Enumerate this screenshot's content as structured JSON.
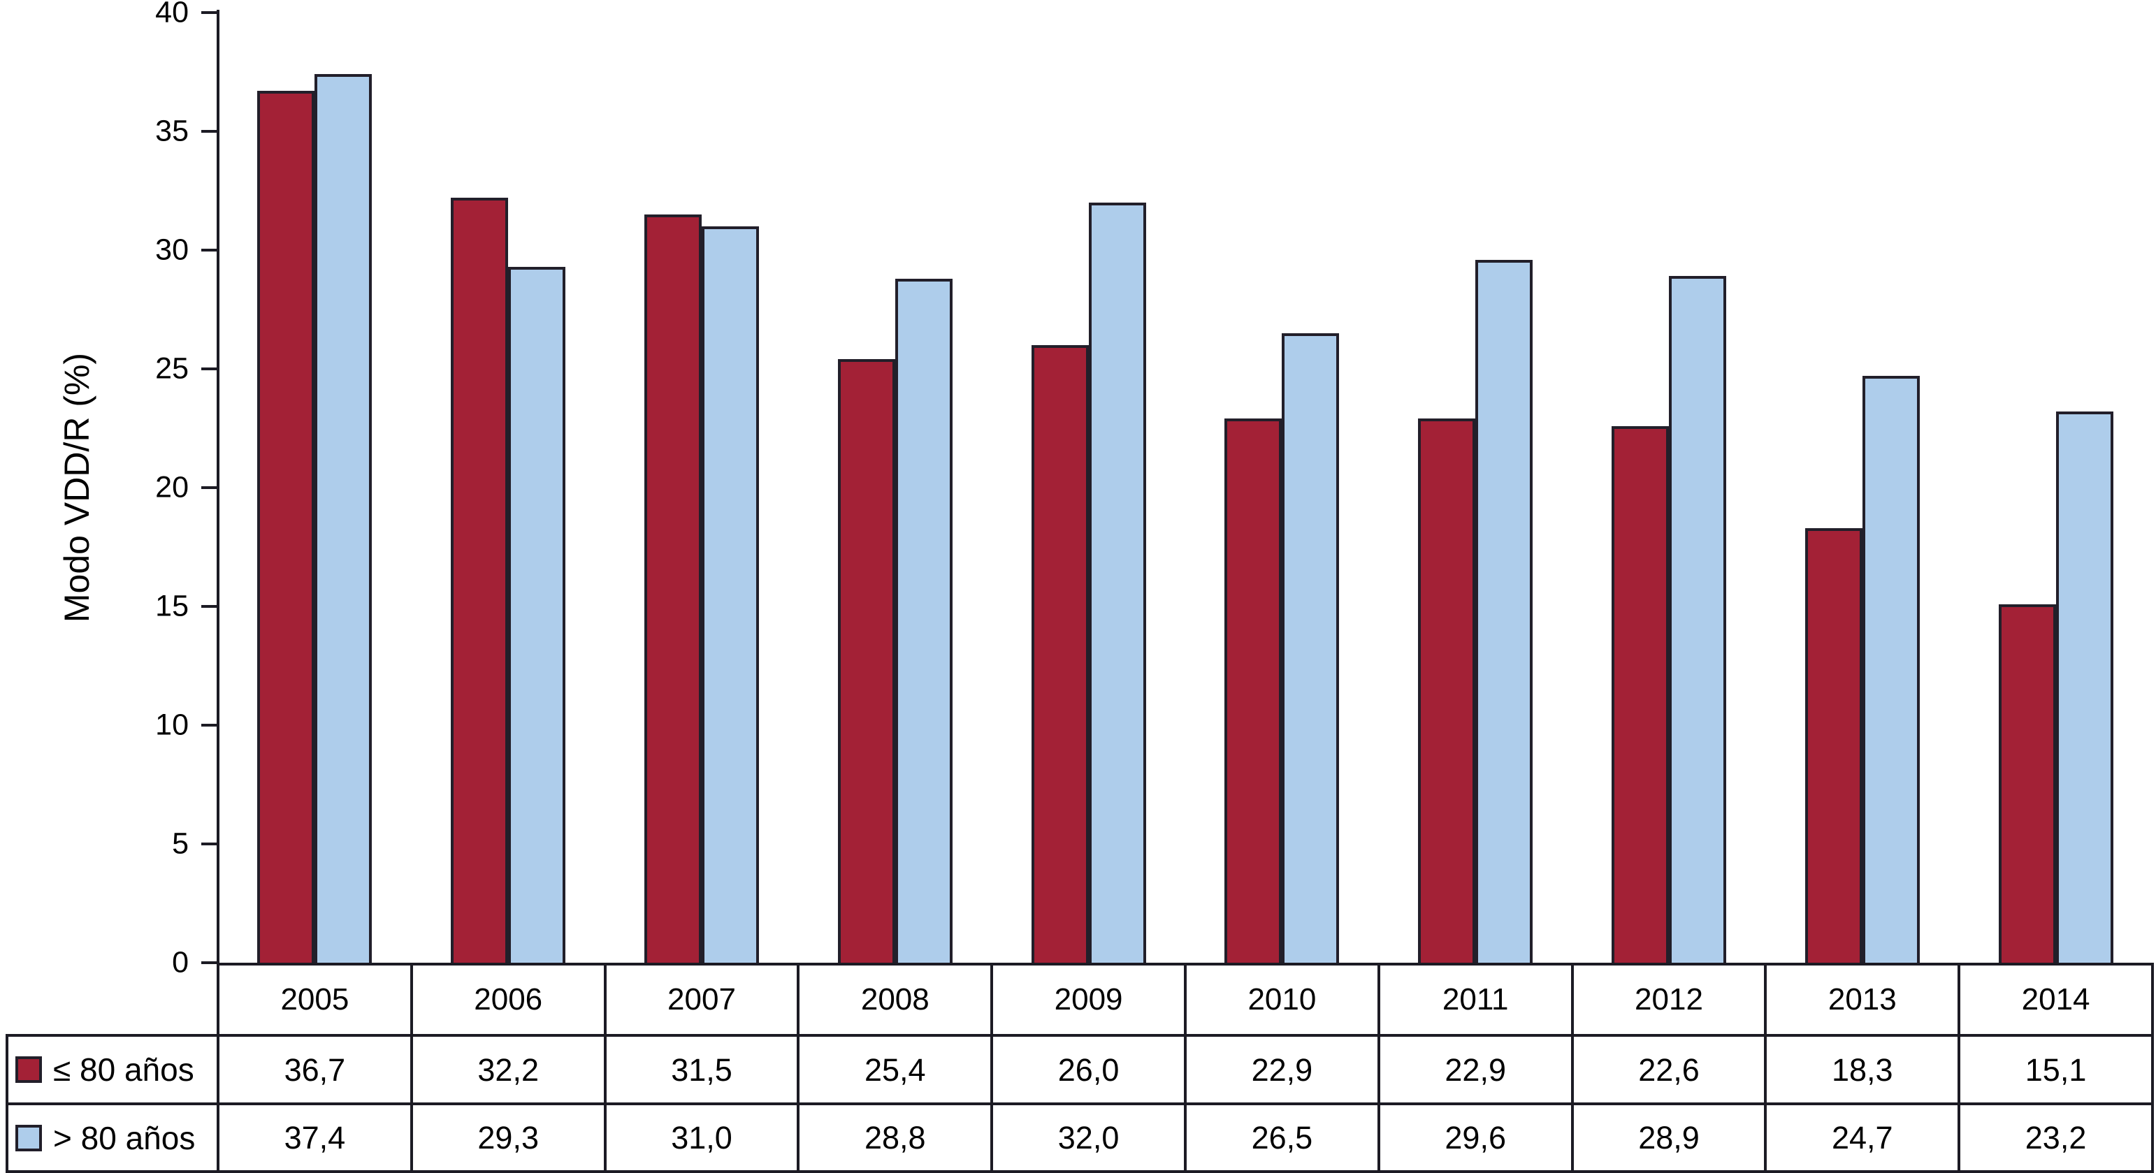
{
  "chart_data": {
    "type": "bar",
    "title": "",
    "xlabel": "",
    "ylabel": "Modo VDD/R (%)",
    "ylim": [
      0,
      40
    ],
    "yticks": [
      0,
      5,
      10,
      15,
      20,
      25,
      30,
      35,
      40
    ],
    "grid": false,
    "legend_position": "table-left-bottom",
    "categories": [
      "2005",
      "2006",
      "2007",
      "2008",
      "2009",
      "2010",
      "2011",
      "2012",
      "2013",
      "2014"
    ],
    "series": [
      {
        "name": "≤ 80 años",
        "color": "#a32136",
        "values": [
          36.7,
          32.2,
          31.5,
          25.4,
          26.0,
          22.9,
          22.9,
          22.6,
          18.3,
          15.1
        ]
      },
      {
        "name": "> 80 años",
        "color": "#aecdeb",
        "values": [
          37.4,
          29.3,
          31.0,
          28.8,
          32.0,
          26.5,
          29.6,
          28.9,
          24.7,
          23.2
        ]
      }
    ]
  },
  "table": {
    "year_header": [
      "2005",
      "2006",
      "2007",
      "2008",
      "2009",
      "2010",
      "2011",
      "2012",
      "2013",
      "2014"
    ],
    "rows": [
      {
        "label": "≤ 80 años",
        "swatch_color": "#a32136",
        "values": [
          "36,7",
          "32,2",
          "31,5",
          "25,4",
          "26,0",
          "22,9",
          "22,9",
          "22,6",
          "18,3",
          "15,1"
        ]
      },
      {
        "label": "> 80 años",
        "swatch_color": "#aecdeb",
        "values": [
          "37,4",
          "29,3",
          "31,0",
          "28,8",
          "32,0",
          "26,5",
          "29,6",
          "28,9",
          "24,7",
          "23,2"
        ]
      }
    ]
  },
  "colors": {
    "series_le80": "#a32136",
    "series_gt80": "#aecdeb",
    "axis_and_borders": "#1c1b24",
    "background": "#ffffff"
  }
}
